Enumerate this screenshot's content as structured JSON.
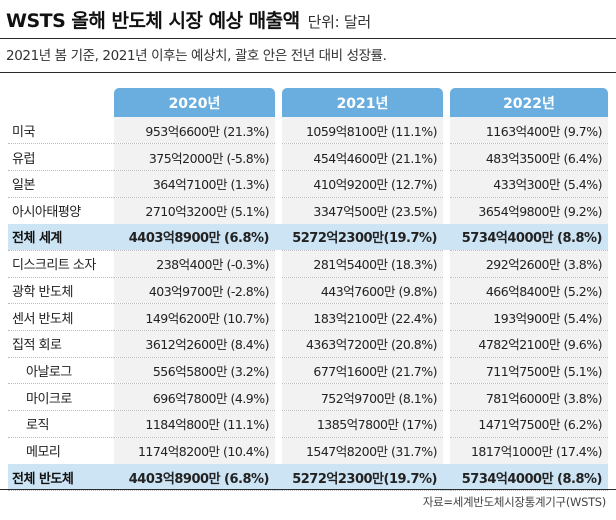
{
  "header": {
    "title": "WSTS 올해 반도체 시장 예상 매출액",
    "unit": "단위: 달러",
    "subtitle": "2021년 봄 기준, 2021년 이후는 예상치, 괄호 안은 전년 대비 성장률."
  },
  "table": {
    "years": [
      "2020년",
      "2021년",
      "2022년"
    ],
    "rows": [
      {
        "label": "미국",
        "v2020": "953억6600만 (21.3%)",
        "v2021": "1059억8100만 (11.1%)",
        "v2022": "1163억400만  (9.7%)"
      },
      {
        "label": "유럽",
        "v2020": "375억2000만 (-5.8%)",
        "v2021": "454억4600만 (21.1%)",
        "v2022": "483억3500만  (6.4%)"
      },
      {
        "label": "일본",
        "v2020": "364억7100만  (1.3%)",
        "v2021": "410억9200만 (12.7%)",
        "v2022": "433억300만  (5.4%)"
      },
      {
        "label": "아시아태평양",
        "v2020": "2710억3200만  (5.1%)",
        "v2021": "3347억500만 (23.5%)",
        "v2022": "3654억9800만  (9.2%)"
      },
      {
        "label": "전체 세계",
        "v2020": "4403억8900만  (6.8%)",
        "v2021": "5272억2300만(19.7%)",
        "v2022": "5734억4000만  (8.8%)"
      },
      {
        "label": "디스크리트 소자",
        "v2020": "238억400만 (-0.3%)",
        "v2021": "281억5400만 (18.3%)",
        "v2022": "292억2600만  (3.8%)"
      },
      {
        "label": "광학 반도체",
        "v2020": "403억9700만 (-2.8%)",
        "v2021": "443억7600만  (9.8%)",
        "v2022": "466억8400만  (5.2%)"
      },
      {
        "label": "센서 반도체",
        "v2020": "149억6200만 (10.7%)",
        "v2021": "183억2100만 (22.4%)",
        "v2022": "193억900만  (5.4%)"
      },
      {
        "label": "집적 회로",
        "v2020": "3612억2600만  (8.4%)",
        "v2021": "4363억7200만 (20.8%)",
        "v2022": "4782억2100만  (9.6%)"
      },
      {
        "label": "아날로그",
        "v2020": "556억5800만  (3.2%)",
        "v2021": "677억1600만 (21.7%)",
        "v2022": "711억7500만  (5.1%)"
      },
      {
        "label": "마이크로",
        "v2020": "696억7800만  (4.9%)",
        "v2021": "752억9700만  (8.1%)",
        "v2022": "781억6000만  (3.8%)"
      },
      {
        "label": "로직",
        "v2020": "1184억800만 (11.1%)",
        "v2021": "1385억7800만   (17%)",
        "v2022": "1471억7500만  (6.2%)"
      },
      {
        "label": "메모리",
        "v2020": "1174억8200만 (10.4%)",
        "v2021": "1547억8200만 (31.7%)",
        "v2022": "1817억1000만 (17.4%)"
      },
      {
        "label": "전체 반도체",
        "v2020": "4403억8900만  (6.8%)",
        "v2021": "5272억2300만(19.7%)",
        "v2022": "5734억4000만  (8.8%)"
      }
    ]
  },
  "source": "자료=세계반도체시장통계기구(WSTS)",
  "colors": {
    "header_blue": "#6aaedf",
    "total_row": "#cde4f4",
    "cell_gray": "#f2f2f2"
  }
}
